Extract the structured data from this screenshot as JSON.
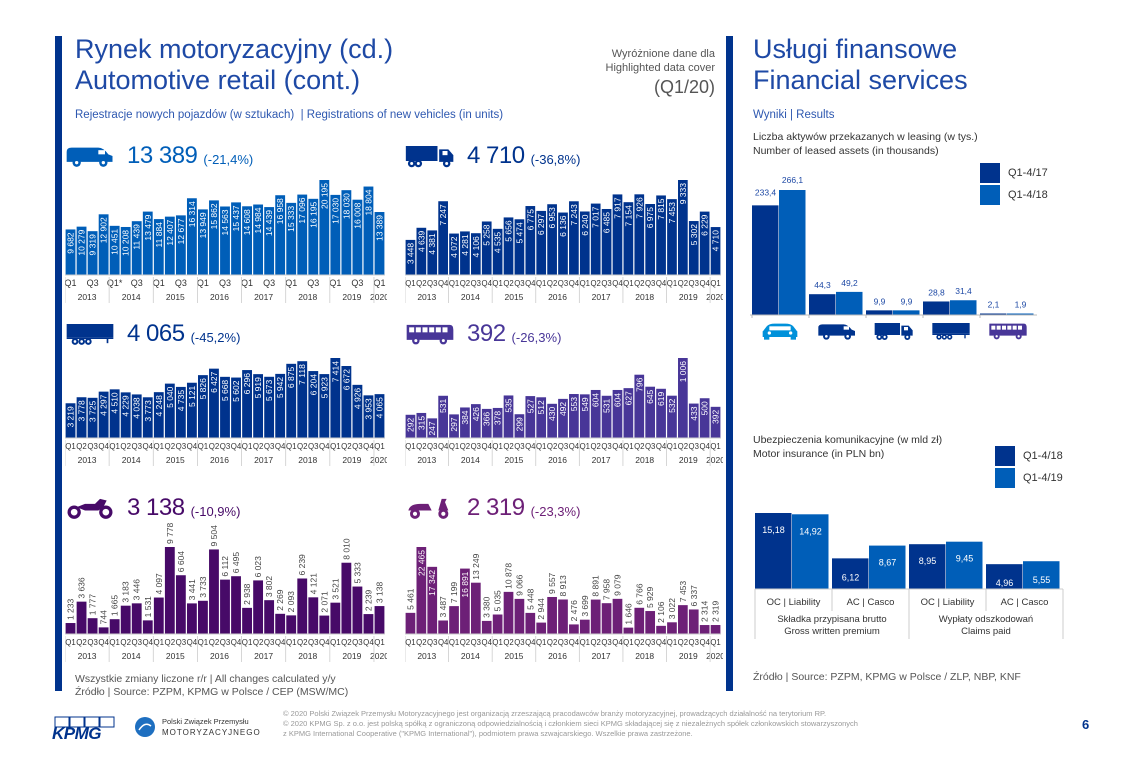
{
  "colors": {
    "dark_blue": "#00338d",
    "mid_blue": "#1e49a5",
    "bright_blue": "#005eb8",
    "purple": "#483698",
    "dark_purple": "#470a68",
    "violet": "#6d2077",
    "gray": "#c6c6c6"
  },
  "left": {
    "title_line1": "Rynek motoryzacyjny (cd.)",
    "title_line2": "Automotive retail (cont.)",
    "highlight_line1": "Wyróżnione dane dla",
    "highlight_line2": "Highlighted data cover",
    "highlight_period": "(Q1/20)",
    "subtitle": "Rejestracje nowych pojazdów (w sztukach)  | Registrations of new vehicles (in units)",
    "note": "Wszystkie zmiany liczone r/r | All changes calculated y/y",
    "source": "Źródło | Source: PZPM, KPMG w Polsce / CEP (MSW/MC)"
  },
  "right": {
    "title_line1": "Usługi finansowe",
    "title_line2": "Financial services",
    "section": "Wyniki | Results",
    "leasing_title1": "Liczba aktywów przekazanych w leasing (w tys.)",
    "leasing_title2": "Number of leased assets (in thousands)",
    "insurance_title1": "Ubezpieczenia komunikacyjne (w mld zł)",
    "insurance_title2": "Motor insurance (in PLN bn)",
    "source": "Źródło | Source: PZPM, KPMG w Polsce / ZLP, NBP, KNF"
  },
  "footer": {
    "kpmg_logo": "KPMG",
    "pzpm_line1": "Polski Związek Przemysłu",
    "pzpm_line2": "MOTORYZACYJNEGO",
    "legal1": "© 2020 Polski Związek Przemysłu Motoryzacyjnego jest organizacją zrzeszającą pracodawców branży motoryzacyjnej, prowadzących działalność na terytorium RP.",
    "legal2": "© 2020 KPMG Sp. z o.o. jest polską spółką z ograniczoną odpowiedzialnością i członkiem sieci KPMG składającej się z niezależnych spółek członkowskich stowarzyszonych",
    "legal3": "z KPMG International Cooperative (\"KPMG International\"), podmiotem prawa szwajcarskiego. Wszelkie prawa zastrzeżone.",
    "page_number": "6"
  },
  "chart_data": [
    {
      "type": "bar",
      "id": "vans",
      "icon": "van-icon",
      "headline": "13 389",
      "change": "(-21,4%)",
      "color": "#005eb8",
      "x_style": "sparse",
      "quarter_labels": [
        "Q1",
        "",
        "Q3",
        "",
        "Q1*",
        "",
        "Q3",
        "",
        "Q1",
        "",
        "Q3",
        "",
        "Q1",
        "",
        "Q3",
        "",
        "Q1",
        "",
        "Q3",
        "",
        "Q1",
        "",
        "Q3",
        "",
        "Q1",
        "",
        "Q3",
        "",
        "Q1"
      ],
      "years": [
        "2013",
        "2014",
        "2015",
        "2016",
        "2017",
        "2018",
        "2019",
        "2020"
      ],
      "values": [
        9682,
        10279,
        9319,
        12902,
        10451,
        10208,
        11439,
        13479,
        11884,
        12407,
        12677,
        16314,
        13949,
        15862,
        14563,
        15437,
        14608,
        14984,
        14439,
        16958,
        15333,
        17096,
        16195,
        20195,
        17030,
        18030,
        16008,
        18804,
        13389
      ],
      "labels": [
        "9 682",
        "10 279",
        "9 319",
        "12 902",
        "10 451",
        "10 208",
        "11 439",
        "13 479",
        "11 884",
        "12 407",
        "12 677",
        "16 314",
        "13 949",
        "15 862",
        "14 563",
        "15 437",
        "14 608",
        "14 984",
        "14 439",
        "16 958",
        "15 333",
        "17 096",
        "16 195",
        "20 195",
        "17 030",
        "18 030",
        "16 008",
        "18 804",
        "13 389"
      ]
    },
    {
      "type": "bar",
      "id": "trucks",
      "icon": "truck-icon",
      "headline": "4 710",
      "change": "(-36,8%)",
      "color": "#00338d",
      "x_style": "full",
      "quarter_labels": [
        "Q1",
        "Q2",
        "Q3",
        "Q4",
        "Q1",
        "Q2",
        "Q3",
        "Q4",
        "Q1",
        "Q2",
        "Q3",
        "Q4",
        "Q1",
        "Q2",
        "Q3",
        "Q4",
        "Q1",
        "Q2",
        "Q3",
        "Q4",
        "Q1",
        "Q2",
        "Q3",
        "Q4",
        "Q1",
        "Q2",
        "Q3",
        "Q4",
        "Q1"
      ],
      "years": [
        "2013",
        "2014",
        "2015",
        "2016",
        "2017",
        "2018",
        "2019",
        "2020"
      ],
      "values": [
        3448,
        4639,
        4381,
        7247,
        4072,
        4281,
        4106,
        5258,
        4535,
        5656,
        5474,
        6775,
        6297,
        6953,
        6136,
        7243,
        6240,
        7017,
        6485,
        7917,
        7154,
        7926,
        6975,
        7815,
        7453,
        9333,
        5302,
        6229,
        4710
      ],
      "labels": [
        "3 448",
        "4 639",
        "4 381",
        "7 247",
        "4 072",
        "4 281",
        "4 106",
        "5 258",
        "4 535",
        "5 656",
        "5 474",
        "6 775",
        "6 297",
        "6 953",
        "6 136",
        "7 243",
        "6 240",
        "7 017",
        "6 485",
        "7 917",
        "7 154",
        "7 926",
        "6 975",
        "7 815",
        "7 453",
        "9 333",
        "5 302",
        "6 229",
        "4 710"
      ]
    },
    {
      "type": "bar",
      "id": "trailers",
      "icon": "trailer-icon",
      "headline": "4 065",
      "change": "(-45,2%)",
      "color": "#00338d",
      "x_style": "full",
      "quarter_labels": [
        "Q1",
        "Q2",
        "Q3",
        "Q4",
        "Q1",
        "Q2",
        "Q3",
        "Q4",
        "Q1",
        "Q2",
        "Q3",
        "Q4",
        "Q1",
        "Q2",
        "Q3",
        "Q4",
        "Q1",
        "Q2",
        "Q3",
        "Q4",
        "Q1",
        "Q2",
        "Q3",
        "Q4",
        "Q1",
        "Q2",
        "Q3",
        "Q4",
        "Q1"
      ],
      "years": [
        "2013",
        "2014",
        "2015",
        "2016",
        "2017",
        "2018",
        "2019",
        "2020"
      ],
      "values": [
        3219,
        3778,
        3725,
        4297,
        4510,
        4229,
        4038,
        3773,
        4248,
        5040,
        4735,
        5121,
        5826,
        6427,
        5668,
        5602,
        6296,
        5919,
        5673,
        5942,
        6875,
        7118,
        6204,
        5923,
        7414,
        6672,
        4926,
        3953,
        4065
      ],
      "labels": [
        "3 219",
        "3 778",
        "3 725",
        "4 297",
        "4 510",
        "4 229",
        "4 038",
        "3 773",
        "4 248",
        "5 040",
        "4 735",
        "5 121",
        "5 826",
        "6 427",
        "5 668",
        "5 602",
        "6 296",
        "5 919",
        "5 673",
        "5 942",
        "6 875",
        "7 118",
        "6 204",
        "5 923",
        "7 414",
        "6 672",
        "4 926",
        "3 953",
        "4 065"
      ]
    },
    {
      "type": "bar",
      "id": "buses",
      "icon": "bus-icon",
      "headline": "392",
      "change": "(-26,3%)",
      "color": "#483698",
      "x_style": "full",
      "quarter_labels": [
        "Q1",
        "Q2",
        "Q3",
        "Q4",
        "Q1",
        "Q2",
        "Q3",
        "Q4",
        "Q1",
        "Q2",
        "Q3",
        "Q4",
        "Q1",
        "Q2",
        "Q3",
        "Q4",
        "Q1",
        "Q2",
        "Q3",
        "Q4",
        "Q1",
        "Q2",
        "Q3",
        "Q4",
        "Q1",
        "Q2",
        "Q3",
        "Q4",
        "Q1"
      ],
      "years": [
        "2013",
        "2014",
        "2015",
        "2016",
        "2017",
        "2018",
        "2019",
        "2020"
      ],
      "values": [
        292,
        315,
        247,
        531,
        297,
        384,
        426,
        366,
        378,
        535,
        299,
        527,
        512,
        430,
        492,
        553,
        549,
        604,
        531,
        604,
        627,
        796,
        645,
        619,
        532,
        1006,
        433,
        500,
        392
      ],
      "labels": [
        "292",
        "315",
        "247",
        "531",
        "297",
        "384",
        "426",
        "366",
        "378",
        "535",
        "299",
        "527",
        "512",
        "430",
        "492",
        "553",
        "549",
        "604",
        "531",
        "604",
        "627",
        "796",
        "645",
        "619",
        "532",
        "1 006",
        "433",
        "500",
        "392"
      ]
    },
    {
      "type": "bar",
      "id": "motorcycles",
      "icon": "motorcycle-icon",
      "headline": "3 138",
      "change": "(-10,9%)",
      "color": "#470a68",
      "x_style": "full",
      "labels_above": true,
      "quarter_labels": [
        "Q1",
        "Q2",
        "Q3",
        "Q4",
        "Q1",
        "Q2",
        "Q3",
        "Q4",
        "Q1",
        "Q2",
        "Q3",
        "Q4",
        "Q1",
        "Q2",
        "Q3",
        "Q4",
        "Q1",
        "Q2",
        "Q3",
        "Q4",
        "Q1",
        "Q2",
        "Q3",
        "Q4",
        "Q1",
        "Q2",
        "Q3",
        "Q4",
        "Q1"
      ],
      "years": [
        "2013",
        "2014",
        "2015",
        "2016",
        "2017",
        "2018",
        "2019",
        "2020"
      ],
      "values": [
        1233,
        3636,
        1777,
        744,
        1665,
        3183,
        3446,
        1531,
        4097,
        9778,
        6604,
        3441,
        3733,
        9504,
        6112,
        6495,
        2938,
        6023,
        3802,
        2269,
        2093,
        6239,
        4121,
        2071,
        3521,
        8010,
        5333,
        2239,
        3138
      ],
      "labels": [
        "1 233",
        "3 636",
        "1 777",
        "744",
        "1 665",
        "3 183",
        "3 446",
        "1 531",
        "4 097",
        "9 778",
        "6 604",
        "3 441",
        "3 733",
        "9 504",
        "6 112",
        "6 495",
        "2 938",
        "6 023",
        "3 802",
        "2 269",
        "2 093",
        "6 239",
        "4 121",
        "2 071",
        "3 521",
        "8 010",
        "5 333",
        "2 239",
        "3 138"
      ]
    },
    {
      "type": "bar",
      "id": "mopeds",
      "icon": "scooter-icon",
      "headline": "2 319",
      "change": "(-23,3%)",
      "color": "#6d2077",
      "x_style": "full",
      "labels_above": true,
      "quarter_labels": [
        "Q1",
        "Q2",
        "Q3",
        "Q4",
        "Q1",
        "Q2",
        "Q3",
        "Q4",
        "Q1",
        "Q2",
        "Q3",
        "Q4",
        "Q1",
        "Q2",
        "Q3",
        "Q4",
        "Q1",
        "Q2",
        "Q3",
        "Q4",
        "Q1",
        "Q2",
        "Q3",
        "Q4",
        "Q1",
        "Q2",
        "Q3",
        "Q4",
        "Q1"
      ],
      "years": [
        "2013",
        "2014",
        "2015",
        "2016",
        "2017",
        "2018",
        "2019",
        "2020"
      ],
      "values": [
        5461,
        22465,
        17342,
        3487,
        7199,
        16891,
        13249,
        3380,
        5035,
        10878,
        9066,
        5448,
        2944,
        9557,
        8913,
        2476,
        3699,
        8891,
        7958,
        9079,
        1646,
        6766,
        5929,
        2106,
        3022,
        7453,
        6337,
        2314,
        2319
      ],
      "labels": [
        "5 461",
        "22 465",
        "17 342",
        "3 487",
        "7 199",
        "16 891",
        "13 249",
        "3 380",
        "5 035",
        "10 878",
        "9 066",
        "5 448",
        "2 944",
        "9 557",
        "8 913",
        "2 476",
        "3 699",
        "8 891",
        "7 958",
        "9 079",
        "1 646",
        "6 766",
        "5 929",
        "2 106",
        "3 022",
        "7 453",
        "6 337",
        "2 314",
        "2 319"
      ]
    },
    {
      "type": "bar",
      "id": "leasing",
      "title": "Number of leased assets (in thousands)",
      "categories": [
        "car",
        "van",
        "truck",
        "trailer",
        "bus"
      ],
      "category_icons": [
        "car-icon",
        "van-icon",
        "truck-icon",
        "trailer-icon",
        "bus-icon"
      ],
      "series": [
        {
          "name": "Q1-4/17",
          "color": "#00338d",
          "values": [
            233.4,
            44.3,
            9.9,
            28.8,
            2.1
          ],
          "labels": [
            "233,4",
            "44,3",
            "9,9",
            "28,8",
            "2,1"
          ]
        },
        {
          "name": "Q1-4/18",
          "color": "#005eb8",
          "values": [
            266.1,
            49.2,
            9.9,
            31.4,
            1.9
          ],
          "labels": [
            "266,1",
            "49,2",
            "9,9",
            "31,4",
            "1,9"
          ]
        }
      ],
      "legend": "top-right"
    },
    {
      "type": "bar",
      "id": "insurance",
      "title": "Motor insurance (in PLN bn)",
      "categories": [
        "OC | Liability",
        "AC | Casco",
        "OC | Liability",
        "AC | Casco"
      ],
      "groups": [
        {
          "line1": "Składka przypisana brutto",
          "line2": "Gross written premium"
        },
        {
          "line1": "Wypłaty odszkodowań",
          "line2": "Claims paid"
        }
      ],
      "series": [
        {
          "name": "Q1-4/18",
          "color": "#00338d",
          "values": [
            15.18,
            6.12,
            8.95,
            4.96
          ],
          "labels": [
            "15,18",
            "6,12",
            "8,95",
            "4,96"
          ]
        },
        {
          "name": "Q1-4/19",
          "color": "#005eb8",
          "values": [
            14.92,
            8.67,
            9.45,
            5.55
          ],
          "labels": [
            "14,92",
            "8,67",
            "9,45",
            "5,55"
          ]
        }
      ],
      "legend": "top-right"
    }
  ]
}
